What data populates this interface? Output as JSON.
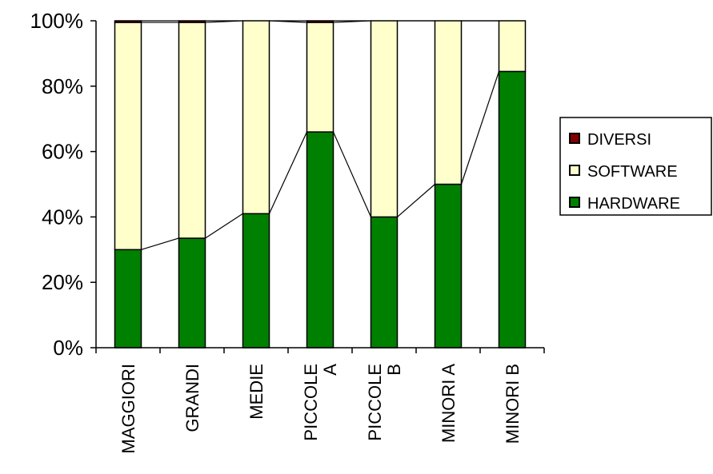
{
  "chart_data": {
    "type": "bar",
    "stacked": "percent",
    "categories": [
      [
        "MAGGIORI"
      ],
      [
        "GRANDI"
      ],
      [
        "MEDIE"
      ],
      [
        "PICCOLE",
        "A"
      ],
      [
        "PICCOLE",
        "B"
      ],
      [
        "MINORI A"
      ],
      [
        "MINORI B"
      ]
    ],
    "series": [
      {
        "name": "HARDWARE",
        "color": "#008000",
        "values": [
          30,
          33.5,
          41,
          66,
          40,
          50,
          84.5
        ]
      },
      {
        "name": "SOFTWARE",
        "color": "#ffffcc",
        "values": [
          69.5,
          66,
          59,
          33.5,
          60,
          50,
          15.5
        ]
      },
      {
        "name": "DIVERSI",
        "color": "#800000",
        "values": [
          0.5,
          0.5,
          0,
          0.5,
          0,
          0,
          0
        ]
      }
    ],
    "series_lines": true,
    "ylim": [
      0,
      100
    ],
    "yticks": [
      "0%",
      "20%",
      "40%",
      "60%",
      "80%",
      "100%"
    ],
    "legend_position": "right",
    "legend_order": [
      "DIVERSI",
      "SOFTWARE",
      "HARDWARE"
    ],
    "grid": false
  }
}
